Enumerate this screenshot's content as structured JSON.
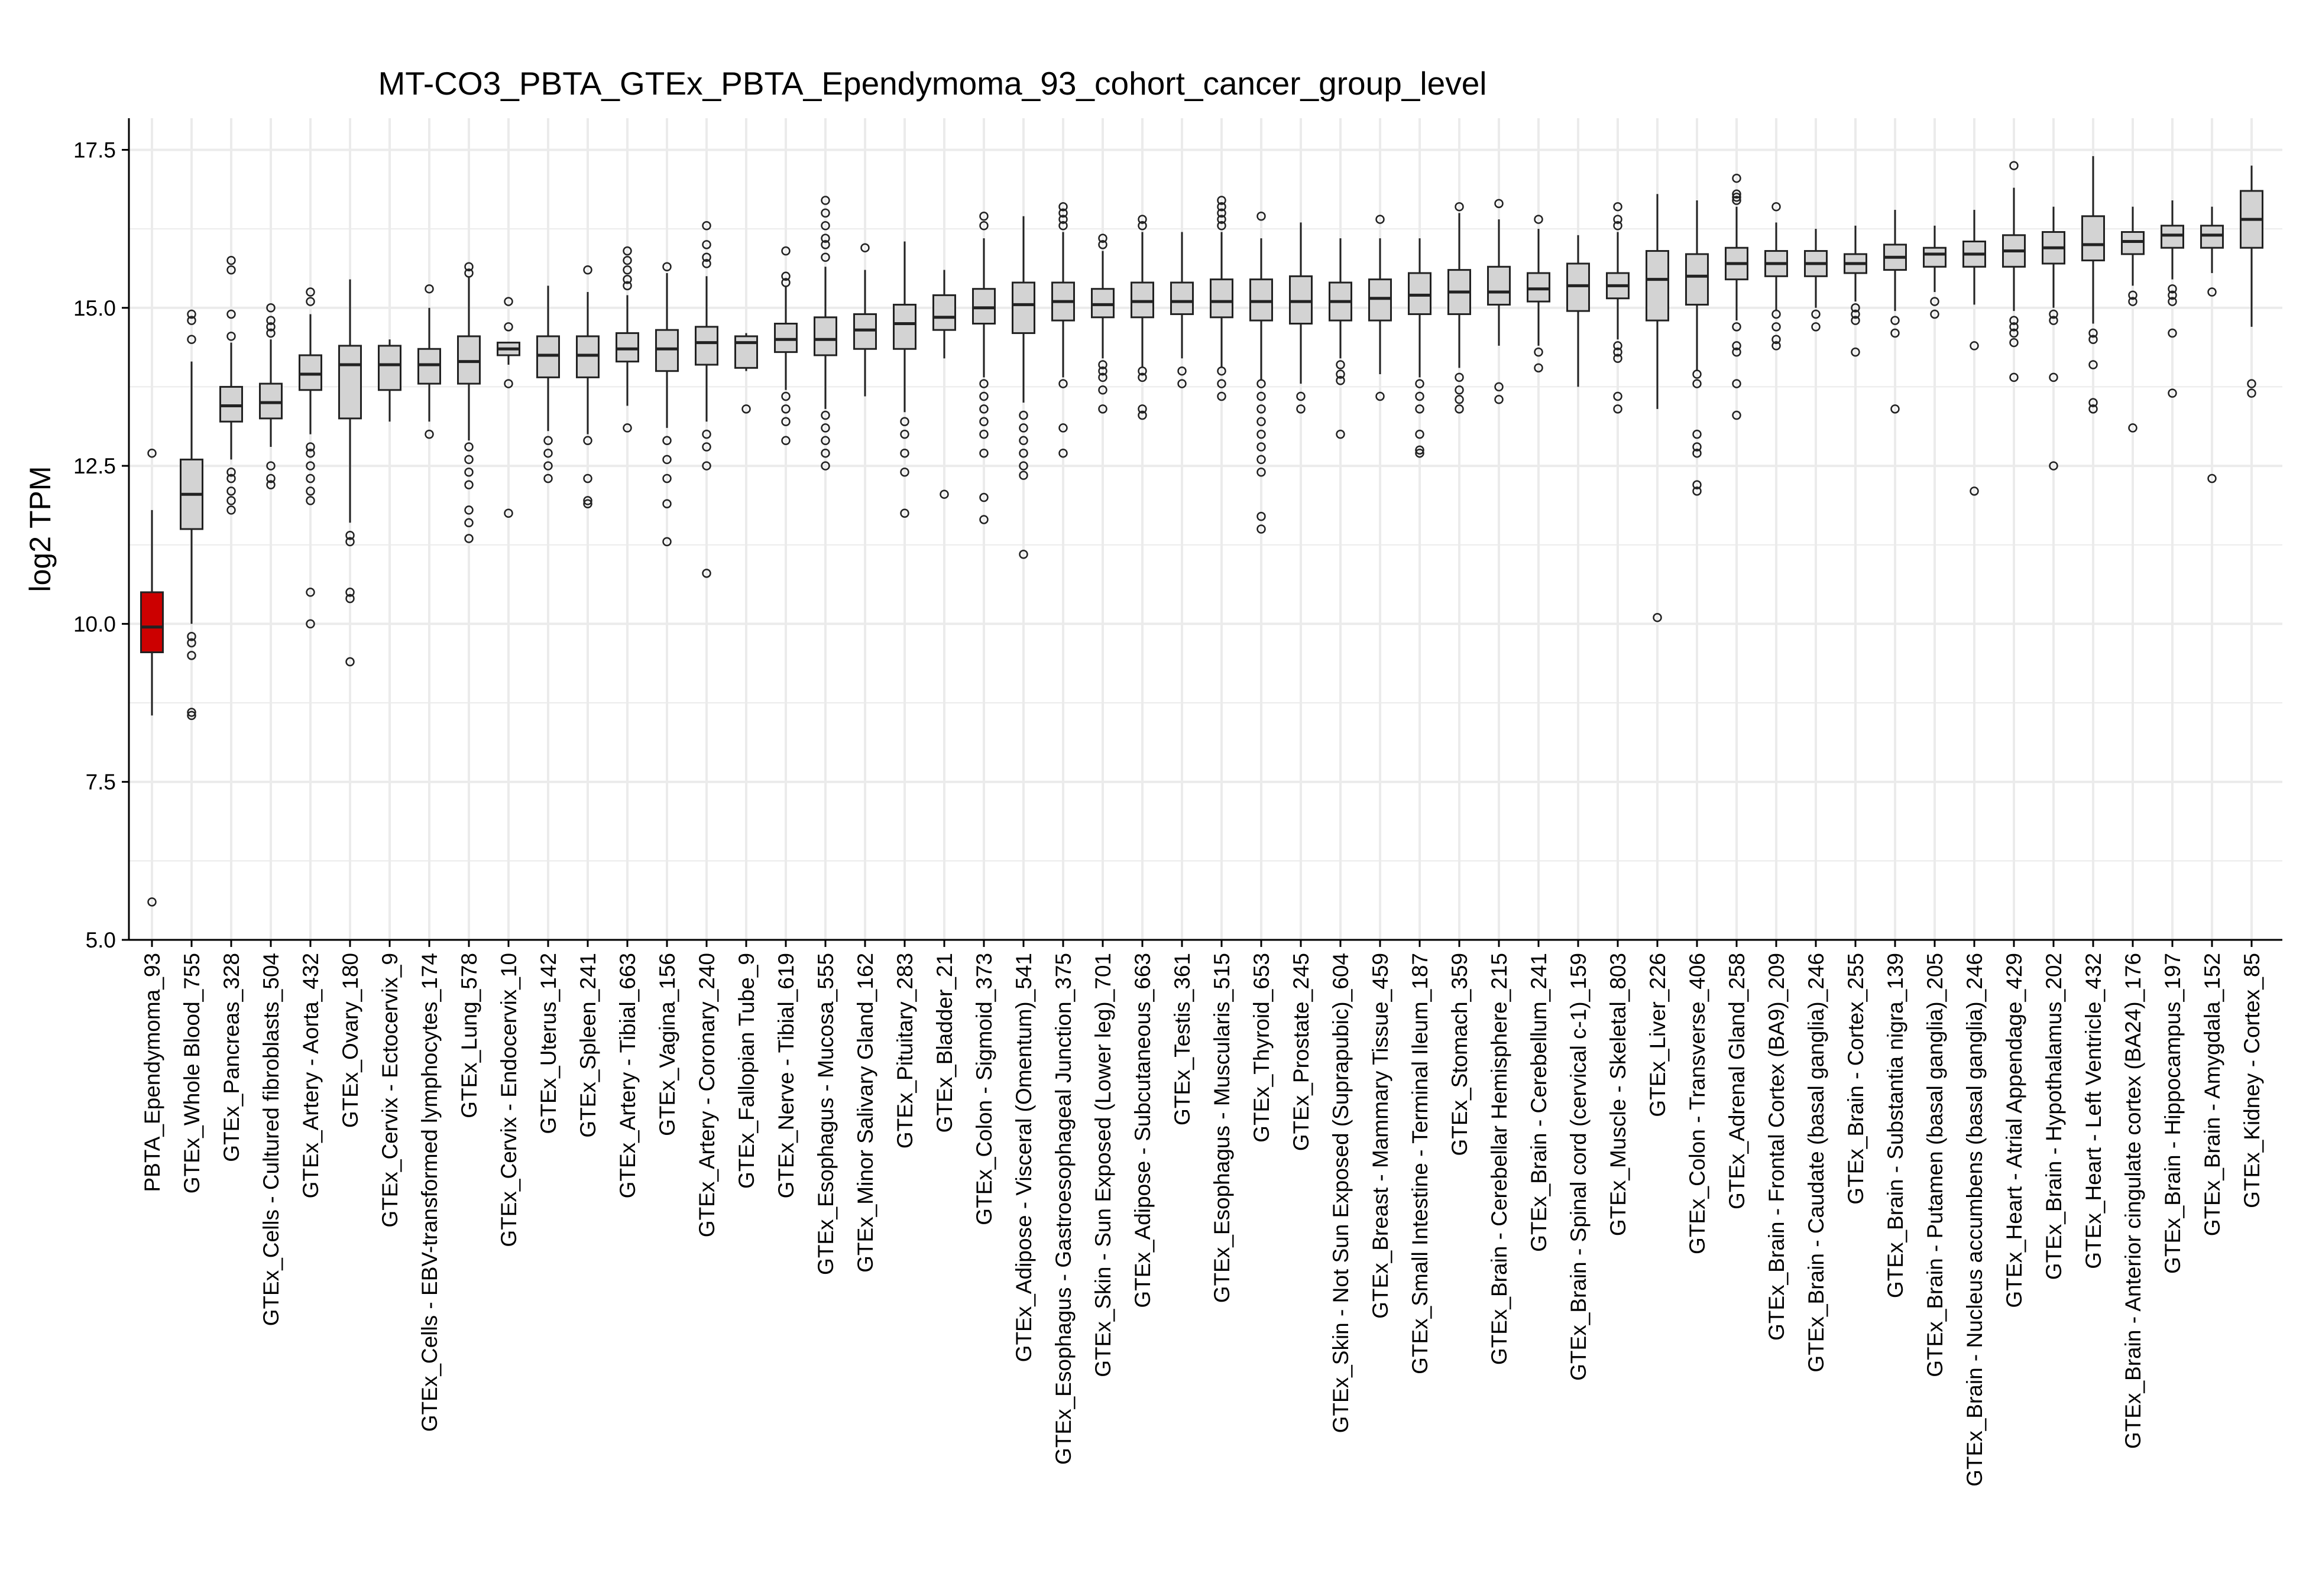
{
  "chart_data": {
    "type": "box",
    "title": "MT-CO3_PBTA_GTEx_PBTA_Ependymoma_93_cohort_cancer_group_level",
    "xlabel": "",
    "ylabel": "log2 TPM",
    "ylim": [
      5.0,
      18.0
    ],
    "yticks": [
      5.0,
      7.5,
      10.0,
      12.5,
      15.0,
      17.5
    ],
    "ytick_labels": [
      "5.0",
      "7.5",
      "10.0",
      "12.5",
      "15.0",
      "17.5"
    ],
    "grid": true,
    "colors": {
      "highlight": "#cc0000",
      "default": "#d3d3d3",
      "outline": "#222222",
      "grid": "#ebebeb"
    },
    "categories": [
      "PBTA_Ependymoma_93",
      "GTEx_Whole Blood_755",
      "GTEx_Pancreas_328",
      "GTEx_Cells - Cultured fibroblasts_504",
      "GTEx_Artery - Aorta_432",
      "GTEx_Ovary_180",
      "GTEx_Cervix - Ectocervix_9",
      "GTEx_Cells - EBV-transformed lymphocytes_174",
      "GTEx_Lung_578",
      "GTEx_Cervix - Endocervix_10",
      "GTEx_Uterus_142",
      "GTEx_Spleen_241",
      "GTEx_Artery - Tibial_663",
      "GTEx_Vagina_156",
      "GTEx_Artery - Coronary_240",
      "GTEx_Fallopian Tube_9",
      "GTEx_Nerve - Tibial_619",
      "GTEx_Esophagus - Mucosa_555",
      "GTEx_Minor Salivary Gland_162",
      "GTEx_Pituitary_283",
      "GTEx_Bladder_21",
      "GTEx_Colon - Sigmoid_373",
      "GTEx_Adipose - Visceral (Omentum)_541",
      "GTEx_Esophagus - Gastroesophageal Junction_375",
      "GTEx_Skin - Sun Exposed (Lower leg)_701",
      "GTEx_Adipose - Subcutaneous_663",
      "GTEx_Testis_361",
      "GTEx_Esophagus - Muscularis_515",
      "GTEx_Thyroid_653",
      "GTEx_Prostate_245",
      "GTEx_Skin - Not Sun Exposed (Suprapubic)_604",
      "GTEx_Breast - Mammary Tissue_459",
      "GTEx_Small Intestine - Terminal Ileum_187",
      "GTEx_Stomach_359",
      "GTEx_Brain - Cerebellar Hemisphere_215",
      "GTEx_Brain - Cerebellum_241",
      "GTEx_Brain - Spinal cord (cervical c-1)_159",
      "GTEx_Muscle - Skeletal_803",
      "GTEx_Liver_226",
      "GTEx_Colon - Transverse_406",
      "GTEx_Adrenal Gland_258",
      "GTEx_Brain - Frontal Cortex (BA9)_209",
      "GTEx_Brain - Caudate (basal ganglia)_246",
      "GTEx_Brain - Cortex_255",
      "GTEx_Brain - Substantia nigra_139",
      "GTEx_Brain - Putamen (basal ganglia)_205",
      "GTEx_Brain - Nucleus accumbens (basal ganglia)_246",
      "GTEx_Heart - Atrial Appendage_429",
      "GTEx_Brain - Hypothalamus_202",
      "GTEx_Heart - Left Ventricle_432",
      "GTEx_Brain - Anterior cingulate cortex (BA24)_176",
      "GTEx_Brain - Hippocampus_197",
      "GTEx_Brain - Amygdala_152",
      "GTEx_Kidney - Cortex_85"
    ],
    "boxes": [
      {
        "q1": 9.55,
        "median": 9.95,
        "q3": 10.5,
        "whislo": 8.55,
        "whishi": 11.8,
        "outliers": [
          12.7,
          5.6
        ],
        "highlight": true
      },
      {
        "q1": 11.5,
        "median": 12.05,
        "q3": 12.6,
        "whislo": 10.0,
        "whishi": 14.15,
        "outliers": [
          14.9,
          14.8,
          14.5,
          9.8,
          9.7,
          9.5,
          8.6,
          8.55
        ]
      },
      {
        "q1": 13.2,
        "median": 13.45,
        "q3": 13.75,
        "whislo": 12.6,
        "whishi": 14.45,
        "outliers": [
          15.75,
          15.6,
          14.9,
          14.55,
          12.4,
          12.3,
          12.1,
          11.95,
          11.8
        ]
      },
      {
        "q1": 13.25,
        "median": 13.5,
        "q3": 13.8,
        "whislo": 12.8,
        "whishi": 14.5,
        "outliers": [
          15.0,
          14.8,
          14.7,
          14.6,
          12.5,
          12.3,
          12.2
        ]
      },
      {
        "q1": 13.7,
        "median": 13.95,
        "q3": 14.25,
        "whislo": 13.0,
        "whishi": 14.9,
        "outliers": [
          15.25,
          15.1,
          12.8,
          12.7,
          12.5,
          12.3,
          12.1,
          11.95,
          10.5,
          10.0
        ]
      },
      {
        "q1": 13.25,
        "median": 14.1,
        "q3": 14.4,
        "whislo": 11.6,
        "whishi": 15.45,
        "outliers": [
          11.4,
          11.3,
          10.5,
          10.4,
          9.4
        ]
      },
      {
        "q1": 13.7,
        "median": 14.1,
        "q3": 14.4,
        "whislo": 13.2,
        "whishi": 14.5,
        "outliers": []
      },
      {
        "q1": 13.8,
        "median": 14.1,
        "q3": 14.35,
        "whislo": 13.2,
        "whishi": 15.0,
        "outliers": [
          15.3,
          13.0
        ]
      },
      {
        "q1": 13.8,
        "median": 14.15,
        "q3": 14.55,
        "whislo": 12.9,
        "whishi": 15.5,
        "outliers": [
          15.65,
          15.55,
          12.8,
          12.6,
          12.4,
          12.2,
          11.8,
          11.6,
          11.35
        ]
      },
      {
        "q1": 14.25,
        "median": 14.35,
        "q3": 14.45,
        "whislo": 14.1,
        "whishi": 14.45,
        "outliers": [
          15.1,
          14.7,
          13.8,
          11.75
        ]
      },
      {
        "q1": 13.9,
        "median": 14.25,
        "q3": 14.55,
        "whislo": 13.05,
        "whishi": 15.35,
        "outliers": [
          12.9,
          12.7,
          12.5,
          12.3
        ]
      },
      {
        "q1": 13.9,
        "median": 14.25,
        "q3": 14.55,
        "whislo": 13.0,
        "whishi": 15.25,
        "outliers": [
          15.6,
          12.9,
          12.3,
          11.95,
          11.9
        ]
      },
      {
        "q1": 14.15,
        "median": 14.35,
        "q3": 14.6,
        "whislo": 13.45,
        "whishi": 15.2,
        "outliers": [
          15.9,
          15.75,
          15.6,
          15.45,
          15.35,
          13.1
        ]
      },
      {
        "q1": 14.0,
        "median": 14.35,
        "q3": 14.65,
        "whislo": 13.1,
        "whishi": 15.55,
        "outliers": [
          15.65,
          12.9,
          12.6,
          12.3,
          11.9,
          11.3
        ]
      },
      {
        "q1": 14.1,
        "median": 14.45,
        "q3": 14.7,
        "whislo": 13.2,
        "whishi": 15.5,
        "outliers": [
          16.3,
          16.0,
          15.8,
          15.7,
          13.0,
          12.8,
          12.5,
          10.8
        ]
      },
      {
        "q1": 14.05,
        "median": 14.45,
        "q3": 14.55,
        "whislo": 14.0,
        "whishi": 14.6,
        "outliers": [
          13.4
        ]
      },
      {
        "q1": 14.3,
        "median": 14.5,
        "q3": 14.75,
        "whislo": 13.7,
        "whishi": 15.35,
        "outliers": [
          15.9,
          15.5,
          15.4,
          13.6,
          13.4,
          13.2,
          12.9
        ]
      },
      {
        "q1": 14.25,
        "median": 14.5,
        "q3": 14.85,
        "whislo": 13.4,
        "whishi": 15.65,
        "outliers": [
          16.7,
          16.5,
          16.3,
          16.1,
          16.0,
          15.8,
          13.3,
          13.1,
          12.9,
          12.7,
          12.5
        ]
      },
      {
        "q1": 14.35,
        "median": 14.65,
        "q3": 14.9,
        "whislo": 13.6,
        "whishi": 15.6,
        "outliers": [
          15.95
        ]
      },
      {
        "q1": 14.35,
        "median": 14.75,
        "q3": 15.05,
        "whislo": 13.35,
        "whishi": 16.05,
        "outliers": [
          13.2,
          13.0,
          12.7,
          12.4,
          11.75
        ]
      },
      {
        "q1": 14.65,
        "median": 14.85,
        "q3": 15.2,
        "whislo": 14.2,
        "whishi": 15.6,
        "outliers": [
          12.05
        ]
      },
      {
        "q1": 14.75,
        "median": 15.0,
        "q3": 15.3,
        "whislo": 13.9,
        "whishi": 16.1,
        "outliers": [
          16.45,
          16.3,
          13.8,
          13.6,
          13.4,
          13.2,
          13.0,
          12.7,
          12.0,
          11.65
        ]
      },
      {
        "q1": 14.6,
        "median": 15.05,
        "q3": 15.4,
        "whislo": 13.5,
        "whishi": 16.45,
        "outliers": [
          13.3,
          13.1,
          12.9,
          12.7,
          12.5,
          12.35,
          11.1
        ]
      },
      {
        "q1": 14.8,
        "median": 15.1,
        "q3": 15.4,
        "whislo": 13.9,
        "whishi": 16.2,
        "outliers": [
          16.6,
          16.5,
          16.4,
          16.3,
          13.8,
          13.1,
          12.7
        ]
      },
      {
        "q1": 14.85,
        "median": 15.05,
        "q3": 15.3,
        "whislo": 14.2,
        "whishi": 15.9,
        "outliers": [
          16.1,
          16.0,
          14.1,
          14.0,
          13.9,
          13.7,
          13.4
        ]
      },
      {
        "q1": 14.85,
        "median": 15.1,
        "q3": 15.4,
        "whislo": 14.05,
        "whishi": 16.2,
        "outliers": [
          16.4,
          16.3,
          14.0,
          13.9,
          13.4,
          13.3
        ]
      },
      {
        "q1": 14.9,
        "median": 15.1,
        "q3": 15.4,
        "whislo": 14.2,
        "whishi": 16.2,
        "outliers": [
          14.0,
          13.8
        ]
      },
      {
        "q1": 14.85,
        "median": 15.1,
        "q3": 15.45,
        "whislo": 14.05,
        "whishi": 16.2,
        "outliers": [
          16.7,
          16.6,
          16.5,
          16.4,
          16.3,
          14.0,
          13.8,
          13.6
        ]
      },
      {
        "q1": 14.8,
        "median": 15.1,
        "q3": 15.45,
        "whislo": 13.85,
        "whishi": 16.1,
        "outliers": [
          16.45,
          13.8,
          13.6,
          13.4,
          13.2,
          13.0,
          12.8,
          12.6,
          12.4,
          11.7,
          11.5
        ]
      },
      {
        "q1": 14.75,
        "median": 15.1,
        "q3": 15.5,
        "whislo": 13.8,
        "whishi": 16.35,
        "outliers": [
          13.6,
          13.4
        ]
      },
      {
        "q1": 14.8,
        "median": 15.1,
        "q3": 15.4,
        "whislo": 14.2,
        "whishi": 16.1,
        "outliers": [
          14.1,
          13.95,
          13.85,
          13.0
        ]
      },
      {
        "q1": 14.8,
        "median": 15.15,
        "q3": 15.45,
        "whislo": 13.95,
        "whishi": 16.1,
        "outliers": [
          16.4,
          13.6
        ]
      },
      {
        "q1": 14.9,
        "median": 15.2,
        "q3": 15.55,
        "whislo": 13.9,
        "whishi": 16.1,
        "outliers": [
          13.8,
          13.6,
          13.4,
          13.0,
          12.75,
          12.7
        ]
      },
      {
        "q1": 14.9,
        "median": 15.25,
        "q3": 15.6,
        "whislo": 14.05,
        "whishi": 16.5,
        "outliers": [
          16.6,
          13.9,
          13.7,
          13.55,
          13.4
        ]
      },
      {
        "q1": 15.05,
        "median": 15.25,
        "q3": 15.65,
        "whislo": 14.4,
        "whishi": 16.4,
        "outliers": [
          16.65,
          13.75,
          13.55
        ]
      },
      {
        "q1": 15.1,
        "median": 15.3,
        "q3": 15.55,
        "whislo": 14.4,
        "whishi": 16.25,
        "outliers": [
          16.4,
          14.3,
          14.05
        ]
      },
      {
        "q1": 14.95,
        "median": 15.35,
        "q3": 15.7,
        "whislo": 13.75,
        "whishi": 16.15,
        "outliers": []
      },
      {
        "q1": 15.15,
        "median": 15.35,
        "q3": 15.55,
        "whislo": 14.5,
        "whishi": 16.2,
        "outliers": [
          16.6,
          16.4,
          16.3,
          14.4,
          14.3,
          14.2,
          13.6,
          13.4
        ]
      },
      {
        "q1": 14.8,
        "median": 15.45,
        "q3": 15.9,
        "whislo": 13.4,
        "whishi": 16.8,
        "outliers": [
          10.1
        ]
      },
      {
        "q1": 15.05,
        "median": 15.5,
        "q3": 15.85,
        "whislo": 14.0,
        "whishi": 16.7,
        "outliers": [
          13.95,
          13.8,
          13.0,
          12.8,
          12.7,
          12.2,
          12.1
        ]
      },
      {
        "q1": 15.45,
        "median": 15.7,
        "q3": 15.95,
        "whislo": 14.8,
        "whishi": 16.6,
        "outliers": [
          17.05,
          16.8,
          16.75,
          16.7,
          14.7,
          14.4,
          14.3,
          13.8,
          13.3
        ]
      },
      {
        "q1": 15.5,
        "median": 15.7,
        "q3": 15.9,
        "whislo": 14.95,
        "whishi": 16.35,
        "outliers": [
          16.6,
          14.9,
          14.7,
          14.5,
          14.4
        ]
      },
      {
        "q1": 15.5,
        "median": 15.7,
        "q3": 15.9,
        "whislo": 15.0,
        "whishi": 16.25,
        "outliers": [
          14.9,
          14.7
        ]
      },
      {
        "q1": 15.55,
        "median": 15.7,
        "q3": 15.85,
        "whislo": 15.1,
        "whishi": 16.3,
        "outliers": [
          15.0,
          14.9,
          14.8,
          14.3
        ]
      },
      {
        "q1": 15.6,
        "median": 15.8,
        "q3": 16.0,
        "whislo": 14.95,
        "whishi": 16.55,
        "outliers": [
          14.8,
          14.6,
          13.4
        ]
      },
      {
        "q1": 15.65,
        "median": 15.85,
        "q3": 15.95,
        "whislo": 15.25,
        "whishi": 16.3,
        "outliers": [
          15.1,
          14.9
        ]
      },
      {
        "q1": 15.65,
        "median": 15.85,
        "q3": 16.05,
        "whislo": 15.05,
        "whishi": 16.55,
        "outliers": [
          14.4,
          12.1
        ]
      },
      {
        "q1": 15.65,
        "median": 15.9,
        "q3": 16.15,
        "whislo": 14.95,
        "whishi": 16.9,
        "outliers": [
          17.25,
          14.8,
          14.7,
          14.6,
          14.45,
          13.9
        ]
      },
      {
        "q1": 15.7,
        "median": 15.95,
        "q3": 16.2,
        "whislo": 15.0,
        "whishi": 16.6,
        "outliers": [
          14.9,
          14.8,
          13.9,
          12.5
        ]
      },
      {
        "q1": 15.75,
        "median": 16.0,
        "q3": 16.45,
        "whislo": 14.75,
        "whishi": 17.4,
        "outliers": [
          14.6,
          14.5,
          14.1,
          13.5,
          13.4
        ]
      },
      {
        "q1": 15.85,
        "median": 16.05,
        "q3": 16.2,
        "whislo": 15.35,
        "whishi": 16.6,
        "outliers": [
          15.2,
          15.1,
          13.1
        ]
      },
      {
        "q1": 15.95,
        "median": 16.15,
        "q3": 16.3,
        "whislo": 15.45,
        "whishi": 16.7,
        "outliers": [
          15.3,
          15.2,
          15.1,
          14.6,
          13.65
        ]
      },
      {
        "q1": 15.95,
        "median": 16.15,
        "q3": 16.3,
        "whislo": 15.55,
        "whishi": 16.6,
        "outliers": [
          15.25,
          12.3
        ]
      },
      {
        "q1": 15.95,
        "median": 16.4,
        "q3": 16.85,
        "whislo": 14.7,
        "whishi": 17.25,
        "outliers": [
          13.8,
          13.65
        ]
      }
    ]
  }
}
